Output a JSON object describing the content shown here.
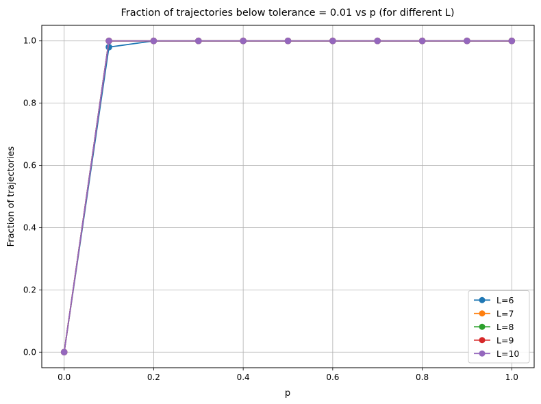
{
  "chart_data": {
    "type": "line",
    "title": "Fraction of trajectories below tolerance = 0.01 vs p (for different L)",
    "xlabel": "p",
    "ylabel": "Fraction of trajectories",
    "xlim": [
      -0.05,
      1.05
    ],
    "ylim": [
      -0.05,
      1.05
    ],
    "xticks": [
      0.0,
      0.2,
      0.4,
      0.6,
      0.8,
      1.0
    ],
    "xtick_labels": [
      "0.0",
      "0.2",
      "0.4",
      "0.6",
      "0.8",
      "1.0"
    ],
    "yticks": [
      0.0,
      0.2,
      0.4,
      0.6,
      0.8,
      1.0
    ],
    "ytick_labels": [
      "0.0",
      "0.2",
      "0.4",
      "0.6",
      "0.8",
      "1.0"
    ],
    "grid": true,
    "legend_position": "bottom-right",
    "marker": "circle",
    "x": [
      0.0,
      0.1,
      0.2,
      0.3,
      0.4,
      0.5,
      0.6,
      0.7,
      0.8,
      0.9,
      1.0
    ],
    "series": [
      {
        "name": "L=6",
        "color": "#1f77b4",
        "values": [
          0.0,
          0.98,
          1.0,
          1.0,
          1.0,
          1.0,
          1.0,
          1.0,
          1.0,
          1.0,
          1.0
        ]
      },
      {
        "name": "L=7",
        "color": "#ff7f0e",
        "values": [
          0.0,
          1.0,
          1.0,
          1.0,
          1.0,
          1.0,
          1.0,
          1.0,
          1.0,
          1.0,
          1.0
        ]
      },
      {
        "name": "L=8",
        "color": "#2ca02c",
        "values": [
          0.0,
          1.0,
          1.0,
          1.0,
          1.0,
          1.0,
          1.0,
          1.0,
          1.0,
          1.0,
          1.0
        ]
      },
      {
        "name": "L=9",
        "color": "#d62728",
        "values": [
          0.0,
          1.0,
          1.0,
          1.0,
          1.0,
          1.0,
          1.0,
          1.0,
          1.0,
          1.0,
          1.0
        ]
      },
      {
        "name": "L=10",
        "color": "#9467bd",
        "values": [
          0.0,
          1.0,
          1.0,
          1.0,
          1.0,
          1.0,
          1.0,
          1.0,
          1.0,
          1.0,
          1.0
        ]
      }
    ]
  }
}
